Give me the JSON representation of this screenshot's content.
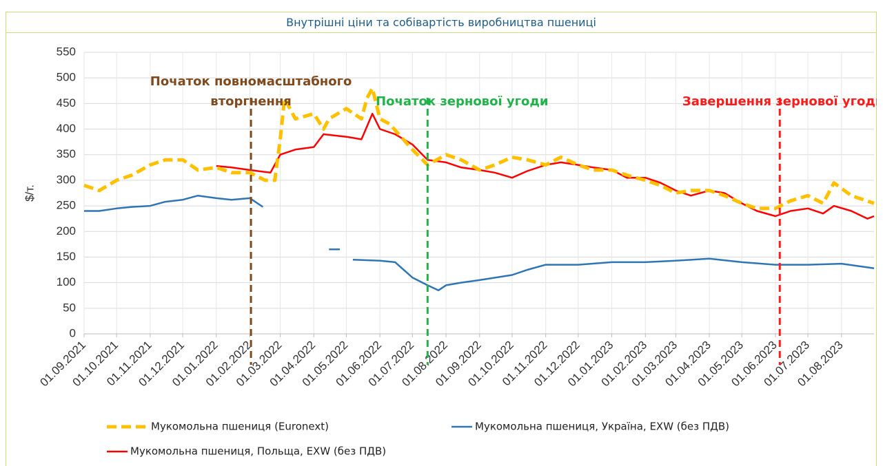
{
  "chart_data": {
    "type": "line",
    "title": "Внутрішні ціни та собівартість виробництва пшениці",
    "ylabel": "$/т.",
    "xlim": [
      "2021-09-01",
      "2023-08-31"
    ],
    "xticks": [
      {
        "value": "2021-09-01",
        "label": "01.09.2021"
      },
      {
        "value": "2021-10-01",
        "label": "01.10.2021"
      },
      {
        "value": "2021-11-01",
        "label": "01.11.2021"
      },
      {
        "value": "2021-12-01",
        "label": "01.12.2021"
      },
      {
        "value": "2022-01-01",
        "label": "01.01.2022"
      },
      {
        "value": "2022-02-01",
        "label": "01.02.2022"
      },
      {
        "value": "2022-03-01",
        "label": "01.03.2022"
      },
      {
        "value": "2022-04-01",
        "label": "01.04.2022"
      },
      {
        "value": "2022-05-01",
        "label": "01.05.2022"
      },
      {
        "value": "2022-06-01",
        "label": "01.06.2022"
      },
      {
        "value": "2022-07-01",
        "label": "01.07.2022"
      },
      {
        "value": "2022-08-01",
        "label": "01.08.2022"
      },
      {
        "value": "2022-09-01",
        "label": "01.09.2022"
      },
      {
        "value": "2022-10-01",
        "label": "01.10.2022"
      },
      {
        "value": "2022-11-01",
        "label": "01.11.2022"
      },
      {
        "value": "2022-12-01",
        "label": "01.12.2022"
      },
      {
        "value": "2023-01-01",
        "label": "01.01.2023"
      },
      {
        "value": "2023-02-01",
        "label": "01.02.2023"
      },
      {
        "value": "2023-03-01",
        "label": "01.03.2023"
      },
      {
        "value": "2023-04-01",
        "label": "01.04.2023"
      },
      {
        "value": "2023-05-01",
        "label": "01.05.2023"
      },
      {
        "value": "2023-06-01",
        "label": "01.06.2023"
      },
      {
        "value": "2023-07-01",
        "label": "01.07.2023"
      },
      {
        "value": "2023-08-01",
        "label": "01.08.2023"
      }
    ],
    "ylim": [
      0,
      550
    ],
    "yticks": [
      0,
      50,
      100,
      150,
      200,
      250,
      300,
      350,
      400,
      450,
      500,
      550
    ],
    "grid": true,
    "legend": "bottom",
    "series": [
      {
        "name": "Мукомольна пшениця (Euronext)",
        "color": "#ffc000",
        "dash": true,
        "x": [
          "2021-09-01",
          "2021-09-15",
          "2021-10-01",
          "2021-10-15",
          "2021-11-01",
          "2021-11-15",
          "2021-12-01",
          "2021-12-15",
          "2022-01-01",
          "2022-01-15",
          "2022-02-01",
          "2022-02-15",
          "2022-02-24",
          "2022-03-01",
          "2022-03-05",
          "2022-03-15",
          "2022-04-01",
          "2022-04-10",
          "2022-04-15",
          "2022-05-01",
          "2022-05-15",
          "2022-05-20",
          "2022-05-25",
          "2022-06-01",
          "2022-06-10",
          "2022-07-01",
          "2022-07-15",
          "2022-08-01",
          "2022-08-15",
          "2022-09-01",
          "2022-09-15",
          "2022-10-01",
          "2022-10-15",
          "2022-11-01",
          "2022-11-15",
          "2022-12-01",
          "2022-12-15",
          "2023-01-01",
          "2023-01-15",
          "2023-02-01",
          "2023-02-15",
          "2023-03-01",
          "2023-03-15",
          "2023-04-01",
          "2023-04-15",
          "2023-05-01",
          "2023-05-15",
          "2023-06-01",
          "2023-06-15",
          "2023-07-01",
          "2023-07-15",
          "2023-07-25",
          "2023-08-10",
          "2023-08-31"
        ],
        "values": [
          290,
          280,
          300,
          310,
          330,
          340,
          340,
          320,
          325,
          315,
          315,
          300,
          300,
          380,
          460,
          420,
          430,
          400,
          420,
          440,
          420,
          460,
          480,
          420,
          410,
          360,
          330,
          350,
          340,
          320,
          330,
          345,
          340,
          330,
          345,
          330,
          320,
          320,
          310,
          300,
          290,
          275,
          280,
          280,
          270,
          255,
          245,
          245,
          260,
          270,
          255,
          295,
          270,
          255
        ]
      },
      {
        "name": "Мукомольна пшениця, Україна, EXW (без ПДВ)",
        "color": "#2e75b6",
        "dash": false,
        "x": [
          "2021-09-01",
          "2021-09-15",
          "2021-10-01",
          "2021-10-15",
          "2021-11-01",
          "2021-11-15",
          "2021-12-01",
          "2021-12-15",
          "2022-01-01",
          "2022-01-15",
          "2022-02-01",
          "2022-02-13",
          "2022-03-01",
          "2022-04-15",
          "2022-04-25",
          "2022-05-01",
          "2022-05-07",
          "2022-06-01",
          "2022-06-15",
          "2022-07-01",
          "2022-07-15",
          "2022-07-25",
          "2022-08-01",
          "2022-08-15",
          "2022-09-01",
          "2022-10-01",
          "2022-10-15",
          "2022-11-01",
          "2022-12-01",
          "2023-01-01",
          "2023-02-01",
          "2023-03-01",
          "2023-04-01",
          "2023-05-01",
          "2023-06-01",
          "2023-07-01",
          "2023-08-01",
          "2023-08-31"
        ],
        "values": [
          240,
          240,
          245,
          248,
          250,
          258,
          262,
          270,
          265,
          262,
          265,
          248,
          null,
          165,
          165,
          null,
          145,
          143,
          140,
          110,
          95,
          85,
          95,
          100,
          105,
          115,
          125,
          135,
          135,
          140,
          140,
          143,
          147,
          140,
          135,
          135,
          137,
          128
        ]
      },
      {
        "name": "Мукомольна пшениця, Польща, EXW (без ПДВ)",
        "color": "#ff0000",
        "dash": false,
        "x": [
          "2022-01-01",
          "2022-01-15",
          "2022-02-01",
          "2022-02-20",
          "2022-03-01",
          "2022-03-15",
          "2022-04-01",
          "2022-04-10",
          "2022-05-01",
          "2022-05-15",
          "2022-05-25",
          "2022-06-01",
          "2022-06-15",
          "2022-07-01",
          "2022-07-15",
          "2022-08-01",
          "2022-08-15",
          "2022-09-01",
          "2022-09-15",
          "2022-10-01",
          "2022-10-15",
          "2022-11-01",
          "2022-11-15",
          "2022-12-01",
          "2022-12-15",
          "2023-01-01",
          "2023-01-15",
          "2023-02-01",
          "2023-02-15",
          "2023-03-01",
          "2023-03-15",
          "2023-04-01",
          "2023-04-15",
          "2023-05-01",
          "2023-05-15",
          "2023-06-01",
          "2023-06-15",
          "2023-07-01",
          "2023-07-15",
          "2023-07-25",
          "2023-08-10",
          "2023-08-25",
          "2023-08-31"
        ],
        "values": [
          328,
          325,
          320,
          315,
          350,
          360,
          365,
          390,
          385,
          380,
          430,
          400,
          390,
          370,
          340,
          335,
          325,
          320,
          315,
          305,
          318,
          330,
          335,
          330,
          325,
          320,
          305,
          305,
          295,
          280,
          270,
          280,
          275,
          255,
          240,
          230,
          240,
          245,
          235,
          250,
          240,
          225,
          230
        ]
      }
    ],
    "events": [
      {
        "x": "2022-02-02",
        "color": "#7f4a1e",
        "label": [
          "Початок повномасштабного",
          "вторгнення"
        ]
      },
      {
        "x": "2022-07-15",
        "color": "#1fb34a",
        "label": [
          "Початок зернової угоди"
        ]
      },
      {
        "x": "2023-06-05",
        "color": "#ff1a1a",
        "label": [
          "Завершення зернової угоди"
        ]
      }
    ]
  }
}
